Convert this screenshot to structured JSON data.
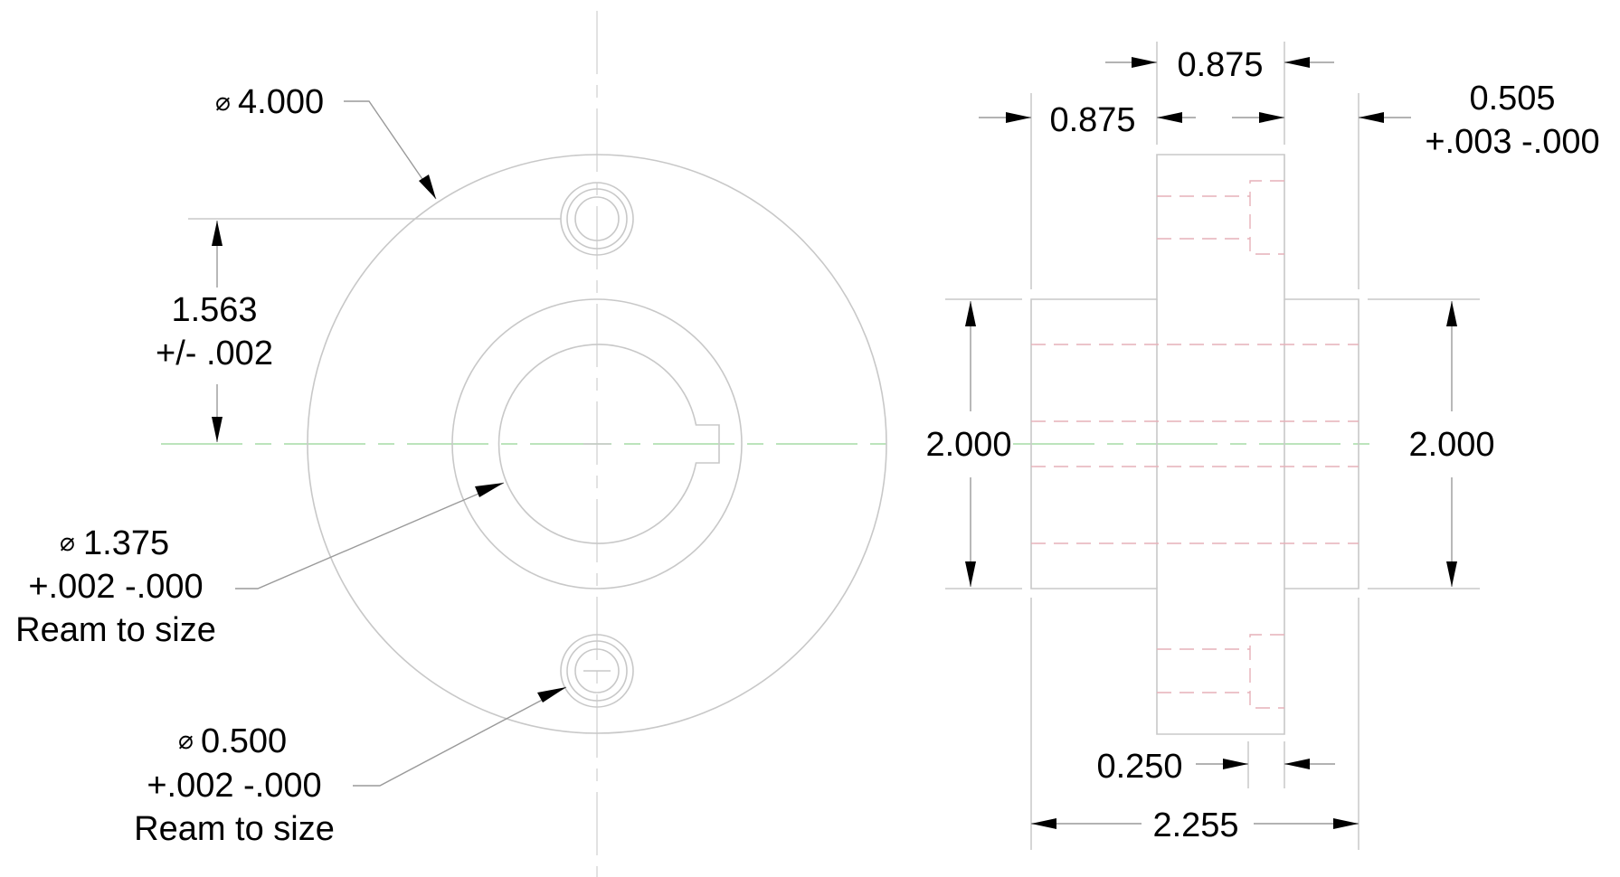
{
  "front_view": {
    "outer_diameter": {
      "symbol": "⌀",
      "value": "4.000"
    },
    "bolt_spacing": {
      "value": "1.563",
      "tolerance": "+/- .002"
    },
    "bore": {
      "symbol": "⌀",
      "value": "1.375",
      "tolerance": "+.002 -.000",
      "note": "Ream to size"
    },
    "bolt_hole": {
      "symbol": "⌀",
      "value": "0.500",
      "tolerance": "+.002 -.000",
      "note": "Ream to size"
    }
  },
  "side_view": {
    "flange_width": "0.875",
    "hub_width": "0.875",
    "right_hub": {
      "value": "0.505",
      "tolerance": "+.003 -.000"
    },
    "hub_diameter_left": "2.000",
    "hub_diameter_right": "2.000",
    "counterbore_depth": "0.250",
    "overall_length": "2.255"
  },
  "colors": {
    "geometry": "#c8c8c8",
    "center_line": "#a6dca6",
    "hidden_line": "#e6b0b8",
    "text": "#000000"
  }
}
